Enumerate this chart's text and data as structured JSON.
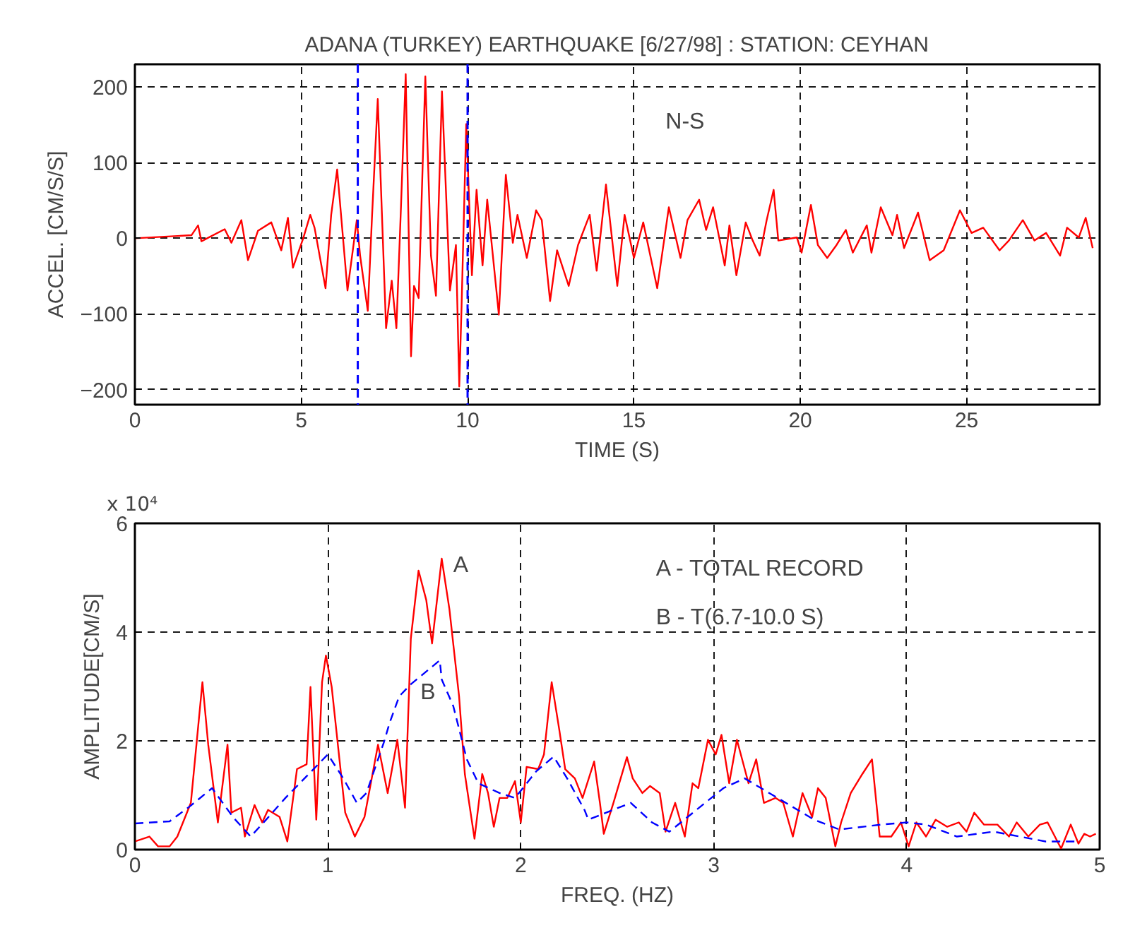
{
  "chart_data": [
    {
      "type": "line",
      "title": "ADANA (TURKEY) EARTHQUAKE [6/27/98] : STATION: CEYHAN",
      "xlabel": "TIME (S)",
      "ylabel": "ACCEL. [CM/S/S]",
      "xlim": [
        0,
        29
      ],
      "ylim": [
        -220,
        230
      ],
      "xticks": [
        0,
        5,
        10,
        15,
        20,
        25
      ],
      "yticks": [
        -200,
        -100,
        0,
        100,
        200
      ],
      "grid": true,
      "ref_lines": [
        {
          "axis": "x",
          "value": 6.7,
          "color": "#0000ff",
          "line_style": "dashed"
        },
        {
          "axis": "x",
          "value": 10.0,
          "color": "#0000ff",
          "line_style": "dashed"
        }
      ],
      "annotations": [
        "N-S"
      ],
      "series": [
        {
          "color": "#ff0000",
          "line_style": "solid",
          "x": [
            0,
            1.7,
            1.9,
            2.0,
            2.7,
            2.9,
            3.2,
            3.4,
            3.7,
            4.1,
            4.4,
            4.6,
            4.75,
            5.06,
            5.27,
            5.4,
            5.73,
            5.9,
            6.08,
            6.39,
            6.67,
            6.77,
            7.0,
            7.13,
            7.3,
            7.55,
            7.72,
            7.86,
            8.0,
            8.14,
            8.3,
            8.39,
            8.53,
            8.73,
            8.9,
            9.05,
            9.23,
            9.47,
            9.65,
            9.75,
            9.82,
            9.96,
            10.13,
            10.27,
            10.45,
            10.59,
            10.94,
            11.15,
            11.36,
            11.5,
            11.78,
            12.06,
            12.23,
            12.48,
            12.69,
            13.04,
            13.32,
            13.67,
            13.88,
            14.16,
            14.5,
            14.72,
            15.0,
            15.28,
            15.7,
            16.05,
            16.4,
            16.61,
            16.96,
            17.17,
            17.38,
            17.73,
            17.87,
            18.08,
            18.36,
            18.57,
            18.78,
            18.99,
            19.2,
            19.34,
            19.9,
            20.04,
            20.32,
            20.53,
            20.81,
            21.09,
            21.37,
            21.58,
            22.0,
            22.14,
            22.42,
            22.77,
            22.91,
            23.12,
            23.54,
            23.89,
            24.31,
            24.8,
            25.15,
            25.5,
            25.99,
            26.27,
            26.69,
            27.04,
            27.39,
            27.81,
            28.02,
            28.37,
            28.58,
            28.79
          ],
          "values": [
            0,
            4,
            17,
            -4,
            12,
            -6,
            24,
            -29,
            10,
            21,
            -16,
            27,
            -39,
            0,
            31,
            14,
            -66,
            31,
            91,
            -69,
            24,
            -23,
            -96,
            31,
            184,
            -119,
            -56,
            -119,
            44,
            217,
            -156,
            -63,
            -79,
            214,
            -23,
            -76,
            194,
            -69,
            -9,
            -196,
            -89,
            151,
            -49,
            64,
            -36,
            51,
            -101,
            84,
            -6,
            31,
            -26,
            37,
            24,
            -83,
            -16,
            -63,
            -9,
            31,
            -43,
            71,
            -63,
            31,
            -26,
            21,
            -66,
            41,
            -26,
            24,
            51,
            11,
            41,
            -36,
            17,
            -49,
            21,
            -3,
            -23,
            24,
            64,
            -3,
            1,
            -19,
            44,
            -9,
            -26,
            -9,
            11,
            -19,
            17,
            -19,
            41,
            4,
            31,
            -13,
            34,
            -29,
            -16,
            37,
            7,
            14,
            -16,
            -3,
            24,
            -3,
            7,
            -23,
            14,
            1,
            27,
            -13
          ]
        }
      ]
    },
    {
      "type": "line",
      "xlabel": "FREQ. (HZ)",
      "ylabel": "AMPLITUDE[CM/S]",
      "xlim": [
        0,
        5
      ],
      "ylim": [
        0,
        6
      ],
      "xticks": [
        0,
        1,
        2,
        3,
        4,
        5
      ],
      "yticks": [
        0,
        2,
        4,
        6
      ],
      "grid": true,
      "annotations": [
        "x 10⁴",
        "A",
        "B",
        "A - TOTAL RECORD",
        "B - T(6.7-10.0 S)"
      ],
      "series": [
        {
          "color": "#ff0000",
          "line_style": "solid",
          "x": [
            0.0,
            0.075,
            0.12,
            0.18,
            0.22,
            0.29,
            0.35,
            0.38,
            0.43,
            0.48,
            0.5,
            0.55,
            0.57,
            0.62,
            0.66,
            0.69,
            0.75,
            0.79,
            0.84,
            0.89,
            0.91,
            0.94,
            0.97,
            0.99,
            1.02,
            1.06,
            1.09,
            1.14,
            1.19,
            1.26,
            1.31,
            1.36,
            1.4,
            1.43,
            1.47,
            1.51,
            1.54,
            1.59,
            1.63,
            1.68,
            1.71,
            1.76,
            1.8,
            1.83,
            1.86,
            1.89,
            1.93,
            1.97,
            2.0,
            2.03,
            2.09,
            2.12,
            2.16,
            2.2,
            2.23,
            2.28,
            2.32,
            2.38,
            2.41,
            2.43,
            2.48,
            2.55,
            2.58,
            2.63,
            2.67,
            2.72,
            2.75,
            2.8,
            2.85,
            2.89,
            2.92,
            2.97,
            3.01,
            3.04,
            3.08,
            3.12,
            3.18,
            3.22,
            3.26,
            3.32,
            3.36,
            3.41,
            3.46,
            3.51,
            3.54,
            3.58,
            3.63,
            3.66,
            3.71,
            3.77,
            3.82,
            3.86,
            3.92,
            3.97,
            4.01,
            4.05,
            4.1,
            4.15,
            4.21,
            4.27,
            4.31,
            4.35,
            4.4,
            4.47,
            4.53,
            4.57,
            4.63,
            4.69,
            4.73,
            4.8,
            4.85,
            4.89,
            4.92,
            4.95,
            4.98
          ],
          "values": [
            0.15,
            0.24,
            0.06,
            0.06,
            0.24,
            0.86,
            3.08,
            1.93,
            0.5,
            1.93,
            0.68,
            0.77,
            0.24,
            0.82,
            0.5,
            0.73,
            0.6,
            0.15,
            1.48,
            1.57,
            2.99,
            0.55,
            3.08,
            3.57,
            2.99,
            1.66,
            0.68,
            0.24,
            0.6,
            1.93,
            1.04,
            2.02,
            0.77,
            3.88,
            5.13,
            4.59,
            3.79,
            5.35,
            4.42,
            2.82,
            1.39,
            0.2,
            1.39,
            1.04,
            0.42,
            0.95,
            0.95,
            1.26,
            0.5,
            1.52,
            1.48,
            1.75,
            3.08,
            2.19,
            1.48,
            1.31,
            0.95,
            1.62,
            0.86,
            0.29,
            0.86,
            1.7,
            1.31,
            1.04,
            1.17,
            1.04,
            0.33,
            0.86,
            0.24,
            1.22,
            1.13,
            2.02,
            1.75,
            2.11,
            1.22,
            2.02,
            1.22,
            1.66,
            0.86,
            0.95,
            0.86,
            0.24,
            1.04,
            0.6,
            1.13,
            0.95,
            0.06,
            0.5,
            1.04,
            1.39,
            1.66,
            0.24,
            0.24,
            0.5,
            0.06,
            0.5,
            0.24,
            0.55,
            0.42,
            0.5,
            0.33,
            0.68,
            0.46,
            0.46,
            0.24,
            0.5,
            0.24,
            0.46,
            0.5,
            0.02,
            0.46,
            0.11,
            0.29,
            0.24,
            0.29
          ]
        },
        {
          "color": "#0000ff",
          "line_style": "dashed",
          "x": [
            0.0,
            0.18,
            0.29,
            0.4,
            0.51,
            0.6,
            0.68,
            0.78,
            1.0,
            1.08,
            1.15,
            1.2,
            1.29,
            1.32,
            1.37,
            1.43,
            1.58,
            1.59,
            1.65,
            1.72,
            1.78,
            1.89,
            1.97,
            2.08,
            2.17,
            2.24,
            2.33,
            2.35,
            2.57,
            2.68,
            2.77,
            3.05,
            3.16,
            3.52,
            3.65,
            3.87,
            4.0,
            4.1,
            4.26,
            4.45,
            4.72,
            4.89
          ],
          "values": [
            0.48,
            0.52,
            0.81,
            1.13,
            0.59,
            0.24,
            0.55,
            0.95,
            1.75,
            1.31,
            0.86,
            1.04,
            1.97,
            2.33,
            2.82,
            3.04,
            3.48,
            3.13,
            2.64,
            1.66,
            1.22,
            1.04,
            0.95,
            1.44,
            1.71,
            1.31,
            0.73,
            0.55,
            0.86,
            0.5,
            0.33,
            1.13,
            1.31,
            0.55,
            0.37,
            0.46,
            0.5,
            0.46,
            0.24,
            0.33,
            0.15,
            0.15
          ]
        }
      ]
    }
  ]
}
